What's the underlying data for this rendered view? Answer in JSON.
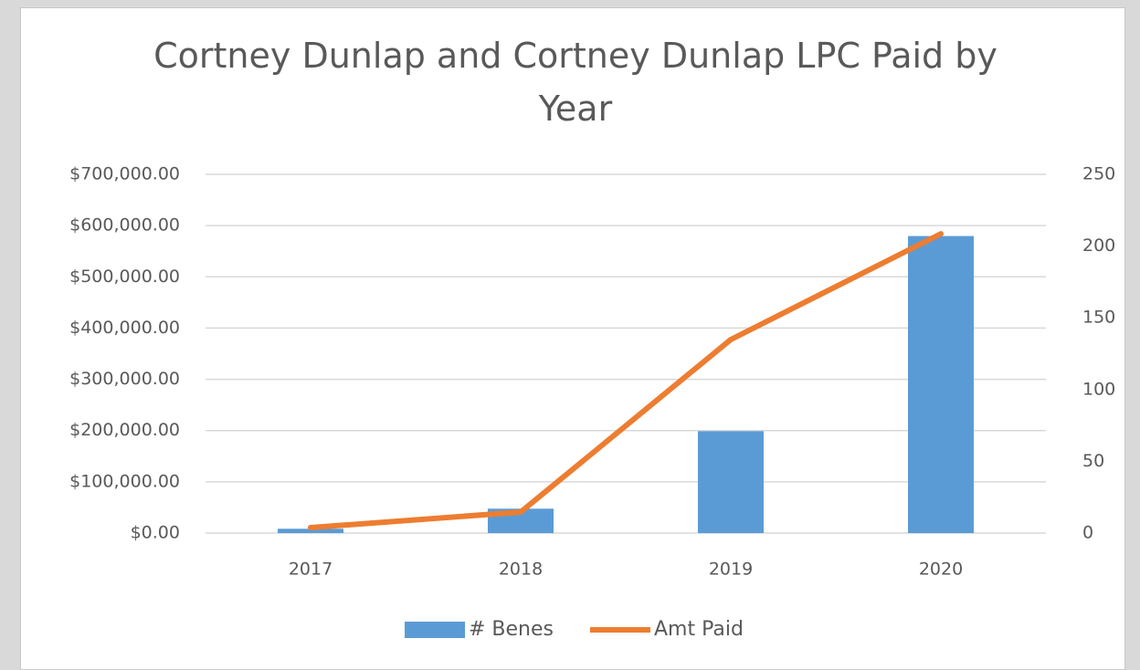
{
  "chart_data": {
    "type": "combo",
    "title": "Cortney Dunlap and Cortney Dunlap LPC Paid by Year",
    "categories": [
      "2017",
      "2018",
      "2019",
      "2020"
    ],
    "series": [
      {
        "name": "# Benes",
        "type": "bar",
        "color": "#5b9bd5",
        "axis": "y2",
        "values": [
          3,
          17,
          71,
          207
        ]
      },
      {
        "name": "Amt Paid",
        "type": "line",
        "color": "#ed7d31",
        "axis": "y",
        "values": [
          10700,
          41000,
          377600,
          584000
        ]
      }
    ],
    "ylim": [
      0,
      700000
    ],
    "yticks": [
      {
        "value": 0,
        "label": "$0.00"
      },
      {
        "value": 100000,
        "label": "$100,000.00"
      },
      {
        "value": 200000,
        "label": "$200,000.00"
      },
      {
        "value": 300000,
        "label": "$300,000.00"
      },
      {
        "value": 400000,
        "label": "$400,000.00"
      },
      {
        "value": 500000,
        "label": "$500,000.00"
      },
      {
        "value": 600000,
        "label": "$600,000.00"
      },
      {
        "value": 700000,
        "label": "$700,000.00"
      }
    ],
    "y2lim": [
      0,
      250
    ],
    "y2ticks": [
      0,
      50,
      100,
      150,
      200,
      250
    ],
    "grid": true,
    "legend": "bottom"
  }
}
